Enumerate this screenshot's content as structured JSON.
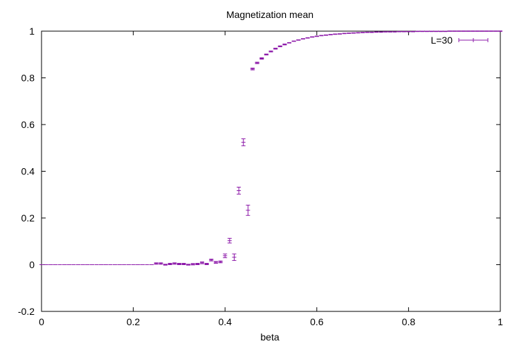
{
  "chart_data": {
    "type": "scatter",
    "title": "Magnetization mean",
    "xlabel": "beta",
    "ylabel": "",
    "xlim": [
      0,
      1
    ],
    "ylim": [
      -0.2,
      1
    ],
    "xticks": [
      "0",
      "0.2",
      "0.4",
      "0.6",
      "0.8",
      "1"
    ],
    "yticks": [
      "-0.2",
      "0",
      "0.2",
      "0.4",
      "0.6",
      "0.8",
      "1"
    ],
    "grid": false,
    "legend_position": "top-right",
    "colors": {
      "series": "#8b17a8",
      "axes": "#000000"
    },
    "series": [
      {
        "name": "L=30",
        "error_bars": true,
        "x": [
          0.0,
          0.01,
          0.02,
          0.03,
          0.04,
          0.05,
          0.06,
          0.07,
          0.08,
          0.09,
          0.1,
          0.11,
          0.12,
          0.13,
          0.14,
          0.15,
          0.16,
          0.17,
          0.18,
          0.19,
          0.2,
          0.21,
          0.22,
          0.23,
          0.24,
          0.25,
          0.26,
          0.27,
          0.28,
          0.29,
          0.3,
          0.31,
          0.32,
          0.33,
          0.34,
          0.35,
          0.36,
          0.37,
          0.38,
          0.39,
          0.4,
          0.41,
          0.42,
          0.43,
          0.44,
          0.45,
          0.46,
          0.47,
          0.48,
          0.49,
          0.5,
          0.51,
          0.52,
          0.53,
          0.54,
          0.55,
          0.56,
          0.57,
          0.58,
          0.59,
          0.6,
          0.61,
          0.62,
          0.63,
          0.64,
          0.65,
          0.66,
          0.67,
          0.68,
          0.69,
          0.7,
          0.71,
          0.72,
          0.73,
          0.74,
          0.75,
          0.76,
          0.77,
          0.78,
          0.79,
          0.8,
          0.81,
          0.82,
          0.83,
          0.84,
          0.85,
          0.86,
          0.87,
          0.88,
          0.89,
          0.9,
          0.91,
          0.92,
          0.93,
          0.94,
          0.95,
          0.96,
          0.97,
          0.98,
          0.99,
          1.0
        ],
        "y": [
          0.0,
          0.0,
          0.0,
          0.0,
          0.0,
          0.0,
          0.0,
          0.0,
          0.0,
          0.0,
          0.0,
          0.0,
          0.0,
          0.0,
          0.0,
          0.0,
          0.0,
          0.0,
          0.0,
          0.0,
          0.0,
          0.0,
          0.0,
          0.0,
          0.0,
          0.005,
          0.005,
          0.0,
          0.003,
          0.005,
          0.003,
          0.003,
          0.0,
          0.002,
          0.003,
          0.008,
          0.003,
          0.02,
          0.01,
          0.012,
          0.038,
          0.103,
          0.032,
          0.317,
          0.524,
          0.233,
          0.838,
          0.864,
          0.883,
          0.9,
          0.913,
          0.925,
          0.935,
          0.943,
          0.95,
          0.957,
          0.962,
          0.967,
          0.971,
          0.975,
          0.978,
          0.981,
          0.983,
          0.985,
          0.987,
          0.988,
          0.99,
          0.991,
          0.992,
          0.993,
          0.994,
          0.995,
          0.995,
          0.996,
          0.996,
          0.997,
          0.997,
          0.997,
          0.998,
          0.998,
          0.998,
          0.998,
          0.999,
          0.999,
          0.999,
          0.999,
          0.999,
          0.999,
          0.999,
          1.0,
          1.0,
          1.0,
          1.0,
          1.0,
          1.0,
          1.0,
          1.0,
          1.0,
          1.0,
          1.0,
          1.0
        ],
        "yerr": [
          0.0,
          0.0,
          0.0,
          0.0,
          0.0,
          0.0,
          0.0,
          0.0,
          0.0,
          0.0,
          0.0,
          0.0,
          0.0,
          0.0,
          0.0,
          0.0,
          0.0,
          0.0,
          0.0,
          0.0,
          0.0,
          0.0,
          0.0,
          0.0,
          0.0,
          0.003,
          0.003,
          0.002,
          0.003,
          0.003,
          0.003,
          0.003,
          0.002,
          0.003,
          0.003,
          0.004,
          0.003,
          0.004,
          0.004,
          0.004,
          0.008,
          0.01,
          0.014,
          0.015,
          0.015,
          0.022,
          0.004,
          0.003,
          0.003,
          0.002,
          0.002,
          0.002,
          0.002,
          0.002,
          0.001,
          0.001,
          0.001,
          0.001,
          0.001,
          0.001,
          0.001,
          0.001,
          0.001,
          0.001,
          0.001,
          0.001,
          0.001,
          0.001,
          0.001,
          0.001,
          0.001,
          0.001,
          0.001,
          0.001,
          0.001,
          0.001,
          0.001,
          0.001,
          0.001,
          0.001,
          0.001,
          0.001,
          0.001,
          0.001,
          0.001,
          0.001,
          0.001,
          0.001,
          0.001,
          0.001,
          0.001,
          0.001,
          0.001,
          0.001,
          0.001,
          0.001,
          0.001,
          0.001,
          0.001,
          0.001,
          0.001
        ]
      }
    ]
  }
}
